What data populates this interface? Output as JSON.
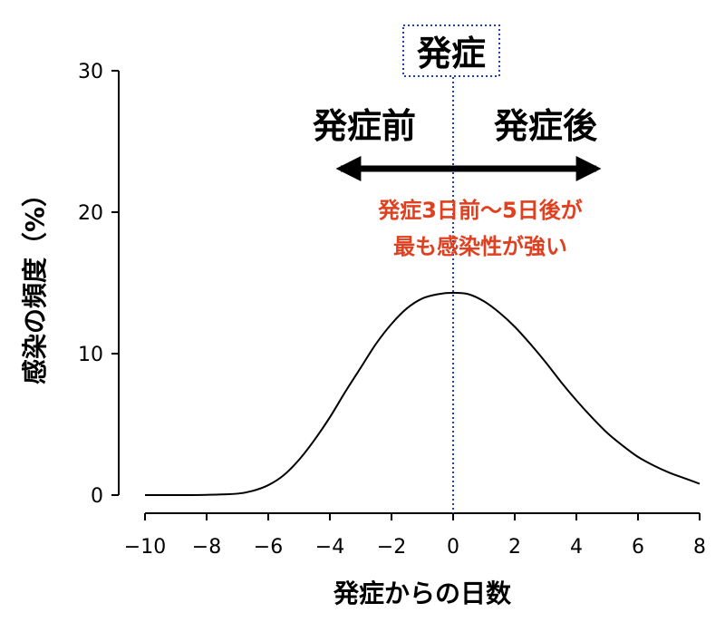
{
  "chart_data": {
    "type": "line",
    "title": "",
    "xlabel": "発症からの日数",
    "ylabel": "感染の頻度（%）",
    "xlim": [
      -10,
      8
    ],
    "ylim": [
      0,
      30
    ],
    "x_ticks": [
      -10,
      -8,
      -6,
      -4,
      -2,
      0,
      2,
      4,
      6,
      8
    ],
    "x_tick_labels": [
      "−10",
      "−8",
      "−6",
      "−4",
      "−2",
      "0",
      "2",
      "4",
      "6",
      "8"
    ],
    "y_ticks": [
      0,
      10,
      20,
      30
    ],
    "y_tick_labels": [
      "0",
      "10",
      "20",
      "30"
    ],
    "grid": false,
    "series": [
      {
        "color": "#000000",
        "x": [
          -10,
          -9,
          -8,
          -7,
          -6.5,
          -6,
          -5.5,
          -5,
          -4.5,
          -4,
          -3.5,
          -3,
          -2.5,
          -2,
          -1.5,
          -1,
          -0.5,
          0,
          0.5,
          1,
          1.5,
          2,
          2.5,
          3,
          3.5,
          4,
          4.5,
          5,
          5.5,
          6,
          6.5,
          7,
          7.5,
          8
        ],
        "y": [
          0,
          0,
          0.02,
          0.1,
          0.3,
          0.7,
          1.4,
          2.5,
          3.9,
          5.5,
          7.3,
          9.0,
          10.7,
          12.1,
          13.2,
          13.9,
          14.2,
          14.3,
          14.2,
          13.7,
          12.9,
          11.9,
          10.7,
          9.4,
          8.0,
          6.7,
          5.5,
          4.4,
          3.5,
          2.7,
          2.1,
          1.6,
          1.2,
          0.8
        ]
      }
    ],
    "onset_line": {
      "x": 0,
      "color": "#1f3fbf",
      "style": "dotted"
    },
    "annotations": {
      "onset_label": "発症",
      "before_label": "発症前",
      "after_label": "発症後",
      "arrow_range": [
        -4,
        5
      ],
      "note_line1": "発症3日前〜5日後が",
      "note_line2": "最も感染性が強い",
      "note_color": "#e0401f"
    }
  }
}
